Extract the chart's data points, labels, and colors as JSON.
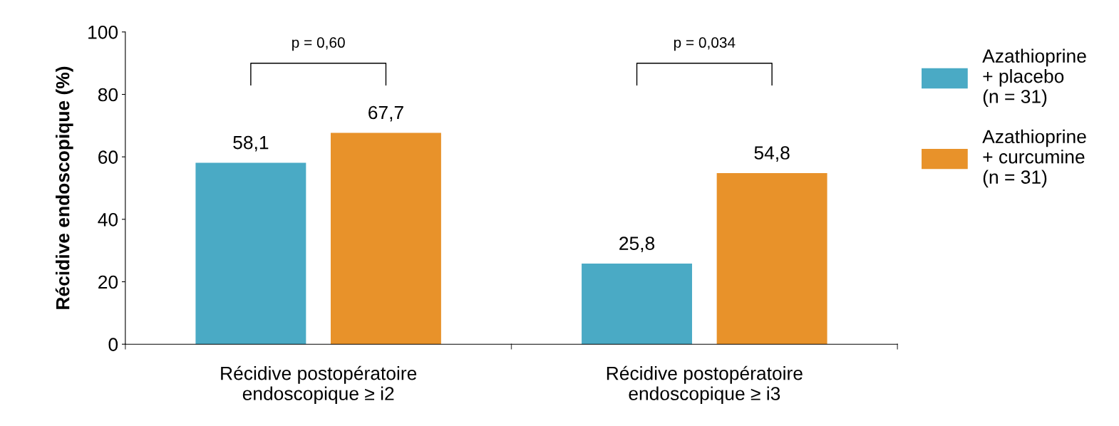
{
  "chart_data": {
    "type": "bar",
    "ylabel": "Récidive endoscopique (%)",
    "categories": [
      "Récidive postopératoire\nendoscopique ≥ i2",
      "Récidive postopératoire\nendoscopique ≥ i3"
    ],
    "series": [
      {
        "name": "Azathioprine\n+ placebo\n(n = 31)",
        "color": "#4aaac5",
        "values": [
          58.1,
          25.8
        ],
        "value_labels": [
          "58,1",
          "25,8"
        ]
      },
      {
        "name": "Azathioprine\n+ curcumine\n(n = 31)",
        "color": "#e8922a",
        "values": [
          67.7,
          54.8
        ],
        "value_labels": [
          "67,7",
          "54,8"
        ]
      }
    ],
    "ylim": [
      0,
      100
    ],
    "yticks": [
      0,
      20,
      40,
      60,
      80,
      100
    ],
    "annotations": [
      "p = 0,60",
      "p = 0,034"
    ],
    "grid": false,
    "legend": "right"
  }
}
